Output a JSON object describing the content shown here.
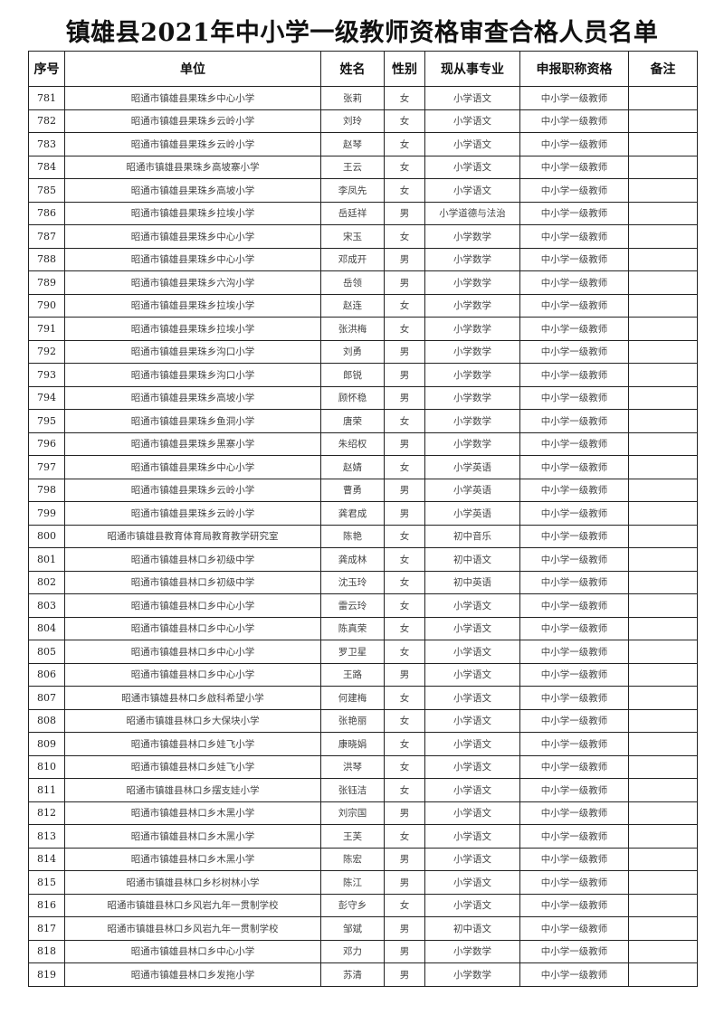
{
  "title": "镇雄县2021年中小学一级教师资格审查合格人员名单",
  "table": {
    "headers": [
      "序号",
      "单位",
      "姓名",
      "性别",
      "现从事专业",
      "申报职称资格",
      "备注"
    ],
    "rows": [
      [
        "781",
        "昭通市镇雄县果珠乡中心小学",
        "张莉",
        "女",
        "小学语文",
        "中小学一级教师",
        ""
      ],
      [
        "782",
        "昭通市镇雄县果珠乡云岭小学",
        "刘玲",
        "女",
        "小学语文",
        "中小学一级教师",
        ""
      ],
      [
        "783",
        "昭通市镇雄县果珠乡云岭小学",
        "赵琴",
        "女",
        "小学语文",
        "中小学一级教师",
        ""
      ],
      [
        "784",
        "昭通市镇雄县果珠乡高坡寨小学",
        "王云",
        "女",
        "小学语文",
        "中小学一级教师",
        ""
      ],
      [
        "785",
        "昭通市镇雄县果珠乡高坡小学",
        "李凤先",
        "女",
        "小学语文",
        "中小学一级教师",
        ""
      ],
      [
        "786",
        "昭通市镇雄县果珠乡拉埃小学",
        "岳廷祥",
        "男",
        "小学道德与法治",
        "中小学一级教师",
        ""
      ],
      [
        "787",
        "昭通市镇雄县果珠乡中心小学",
        "宋玉",
        "女",
        "小学数学",
        "中小学一级教师",
        ""
      ],
      [
        "788",
        "昭通市镇雄县果珠乡中心小学",
        "邓成开",
        "男",
        "小学数学",
        "中小学一级教师",
        ""
      ],
      [
        "789",
        "昭通市镇雄县果珠乡六沟小学",
        "岳领",
        "男",
        "小学数学",
        "中小学一级教师",
        ""
      ],
      [
        "790",
        "昭通市镇雄县果珠乡拉埃小学",
        "赵连",
        "女",
        "小学数学",
        "中小学一级教师",
        ""
      ],
      [
        "791",
        "昭通市镇雄县果珠乡拉埃小学",
        "张洪梅",
        "女",
        "小学数学",
        "中小学一级教师",
        ""
      ],
      [
        "792",
        "昭通市镇雄县果珠乡沟口小学",
        "刘勇",
        "男",
        "小学数学",
        "中小学一级教师",
        ""
      ],
      [
        "793",
        "昭通市镇雄县果珠乡沟口小学",
        "郎锐",
        "男",
        "小学数学",
        "中小学一级教师",
        ""
      ],
      [
        "794",
        "昭通市镇雄县果珠乡高坡小学",
        "顾怀稳",
        "男",
        "小学数学",
        "中小学一级教师",
        ""
      ],
      [
        "795",
        "昭通市镇雄县果珠乡鱼洞小学",
        "唐荣",
        "女",
        "小学数学",
        "中小学一级教师",
        ""
      ],
      [
        "796",
        "昭通市镇雄县果珠乡黑寨小学",
        "朱绍权",
        "男",
        "小学数学",
        "中小学一级教师",
        ""
      ],
      [
        "797",
        "昭通市镇雄县果珠乡中心小学",
        "赵婧",
        "女",
        "小学英语",
        "中小学一级教师",
        ""
      ],
      [
        "798",
        "昭通市镇雄县果珠乡云岭小学",
        "曹勇",
        "男",
        "小学英语",
        "中小学一级教师",
        ""
      ],
      [
        "799",
        "昭通市镇雄县果珠乡云岭小学",
        "龚君成",
        "男",
        "小学英语",
        "中小学一级教师",
        ""
      ],
      [
        "800",
        "昭通市镇雄县教育体育局教育教学研究室",
        "陈艳",
        "女",
        "初中音乐",
        "中小学一级教师",
        ""
      ],
      [
        "801",
        "昭通市镇雄县林口乡初级中学",
        "龚成林",
        "女",
        "初中语文",
        "中小学一级教师",
        ""
      ],
      [
        "802",
        "昭通市镇雄县林口乡初级中学",
        "沈玉玲",
        "女",
        "初中英语",
        "中小学一级教师",
        ""
      ],
      [
        "803",
        "昭通市镇雄县林口乡中心小学",
        "雷云玲",
        "女",
        "小学语文",
        "中小学一级教师",
        ""
      ],
      [
        "804",
        "昭通市镇雄县林口乡中心小学",
        "陈真荣",
        "女",
        "小学语文",
        "中小学一级教师",
        ""
      ],
      [
        "805",
        "昭通市镇雄县林口乡中心小学",
        "罗卫星",
        "女",
        "小学语文",
        "中小学一级教师",
        ""
      ],
      [
        "806",
        "昭通市镇雄县林口乡中心小学",
        "王路",
        "男",
        "小学语文",
        "中小学一级教师",
        ""
      ],
      [
        "807",
        "昭通市镇雄县林口乡啟科希望小学",
        "何建梅",
        "女",
        "小学语文",
        "中小学一级教师",
        ""
      ],
      [
        "808",
        "昭通市镇雄县林口乡大保块小学",
        "张艳丽",
        "女",
        "小学语文",
        "中小学一级教师",
        ""
      ],
      [
        "809",
        "昭通市镇雄县林口乡娃飞小学",
        "康晓娟",
        "女",
        "小学语文",
        "中小学一级教师",
        ""
      ],
      [
        "810",
        "昭通市镇雄县林口乡娃飞小学",
        "洪琴",
        "女",
        "小学语文",
        "中小学一级教师",
        ""
      ],
      [
        "811",
        "昭通市镇雄县林口乡摆支娃小学",
        "张钰洁",
        "女",
        "小学语文",
        "中小学一级教师",
        ""
      ],
      [
        "812",
        "昭通市镇雄县林口乡木黑小学",
        "刘宗国",
        "男",
        "小学语文",
        "中小学一级教师",
        ""
      ],
      [
        "813",
        "昭通市镇雄县林口乡木黑小学",
        "王芙",
        "女",
        "小学语文",
        "中小学一级教师",
        ""
      ],
      [
        "814",
        "昭通市镇雄县林口乡木黑小学",
        "陈宏",
        "男",
        "小学语文",
        "中小学一级教师",
        ""
      ],
      [
        "815",
        "昭通市镇雄县林口乡杉树林小学",
        "陈江",
        "男",
        "小学语文",
        "中小学一级教师",
        ""
      ],
      [
        "816",
        "昭通市镇雄县林口乡风岩九年一贯制学校",
        "彭守乡",
        "女",
        "小学语文",
        "中小学一级教师",
        ""
      ],
      [
        "817",
        "昭通市镇雄县林口乡风岩九年一贯制学校",
        "邹斌",
        "男",
        "初中语文",
        "中小学一级教师",
        ""
      ],
      [
        "818",
        "昭通市镇雄县林口乡中心小学",
        "邓力",
        "男",
        "小学数学",
        "中小学一级教师",
        ""
      ],
      [
        "819",
        "昭通市镇雄县林口乡发拖小学",
        "苏清",
        "男",
        "小学数学",
        "中小学一级教师",
        ""
      ]
    ]
  }
}
